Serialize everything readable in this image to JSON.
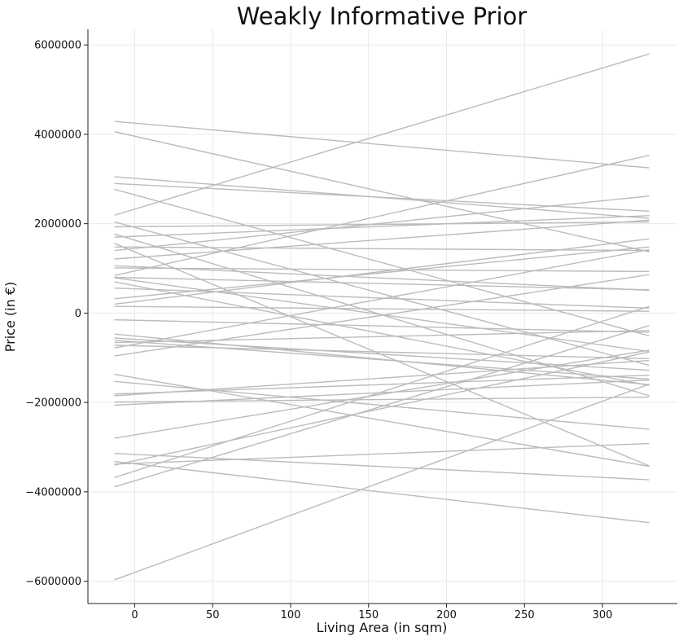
{
  "chart_data": {
    "type": "line",
    "title": "Weakly Informative Prior",
    "xlabel": "Living Area (in sqm)",
    "ylabel": "Price (in €)",
    "xlim": [
      -30,
      348
    ],
    "ylim": [
      -6500000,
      6350000
    ],
    "xticks": [
      0,
      50,
      100,
      150,
      200,
      250,
      300
    ],
    "yticks": [
      -6000000,
      -4000000,
      -2000000,
      0,
      2000000,
      4000000,
      6000000
    ],
    "xtick_labels": [
      "0",
      "50",
      "100",
      "150",
      "200",
      "250",
      "300"
    ],
    "ytick_labels": [
      "−6000000",
      "−4000000",
      "−2000000",
      "0",
      "2000000",
      "4000000",
      "6000000"
    ],
    "grid": true,
    "line_color": "#bbbbbb",
    "x": [
      -13,
      330
    ],
    "series": [
      {
        "values": [
          -5970000,
          -1590000
        ]
      },
      {
        "values": [
          2190000,
          5800000
        ]
      },
      {
        "values": [
          4290000,
          3250000
        ]
      },
      {
        "values": [
          4060000,
          1370000
        ]
      },
      {
        "values": [
          3050000,
          2120000
        ]
      },
      {
        "values": [
          2900000,
          2280000
        ]
      },
      {
        "values": [
          2770000,
          -510000
        ]
      },
      {
        "values": [
          2040000,
          -1170000
        ]
      },
      {
        "values": [
          1930000,
          2040000
        ]
      },
      {
        "values": [
          1770000,
          -1850000
        ]
      },
      {
        "values": [
          1700000,
          2180000
        ]
      },
      {
        "values": [
          1560000,
          -3420000
        ]
      },
      {
        "values": [
          1480000,
          1400000
        ]
      },
      {
        "values": [
          1400000,
          2620000
        ]
      },
      {
        "values": [
          1210000,
          2080000
        ]
      },
      {
        "values": [
          1060000,
          510000
        ]
      },
      {
        "values": [
          1010000,
          930000
        ]
      },
      {
        "values": [
          840000,
          3530000
        ]
      },
      {
        "values": [
          800000,
          520000
        ]
      },
      {
        "values": [
          790000,
          -860000
        ]
      },
      {
        "values": [
          700000,
          -1620000
        ]
      },
      {
        "values": [
          560000,
          110000
        ]
      },
      {
        "values": [
          320000,
          1480000
        ]
      },
      {
        "values": [
          200000,
          1660000
        ]
      },
      {
        "values": [
          150000,
          40000
        ]
      },
      {
        "values": [
          -150000,
          -430000
        ]
      },
      {
        "values": [
          -470000,
          -1600000
        ]
      },
      {
        "values": [
          -560000,
          -1280000
        ]
      },
      {
        "values": [
          -610000,
          -1480000
        ]
      },
      {
        "values": [
          -660000,
          -390000
        ]
      },
      {
        "values": [
          -720000,
          -1020000
        ]
      },
      {
        "values": [
          -780000,
          1420000
        ]
      },
      {
        "values": [
          -960000,
          860000
        ]
      },
      {
        "values": [
          -1370000,
          -3430000
        ]
      },
      {
        "values": [
          -1530000,
          -2600000
        ]
      },
      {
        "values": [
          -1810000,
          -1390000
        ]
      },
      {
        "values": [
          -1850000,
          -1060000
        ]
      },
      {
        "values": [
          -1990000,
          -1880000
        ]
      },
      {
        "values": [
          -2060000,
          -1500000
        ]
      },
      {
        "values": [
          -2800000,
          -830000
        ]
      },
      {
        "values": [
          -3140000,
          -3730000
        ]
      },
      {
        "values": [
          -3380000,
          -2920000
        ]
      },
      {
        "values": [
          -3400000,
          -870000
        ]
      },
      {
        "values": [
          -3680000,
          150000
        ]
      },
      {
        "values": [
          -3890000,
          -280000
        ]
      },
      {
        "values": [
          -3320000,
          -4690000
        ]
      }
    ]
  }
}
